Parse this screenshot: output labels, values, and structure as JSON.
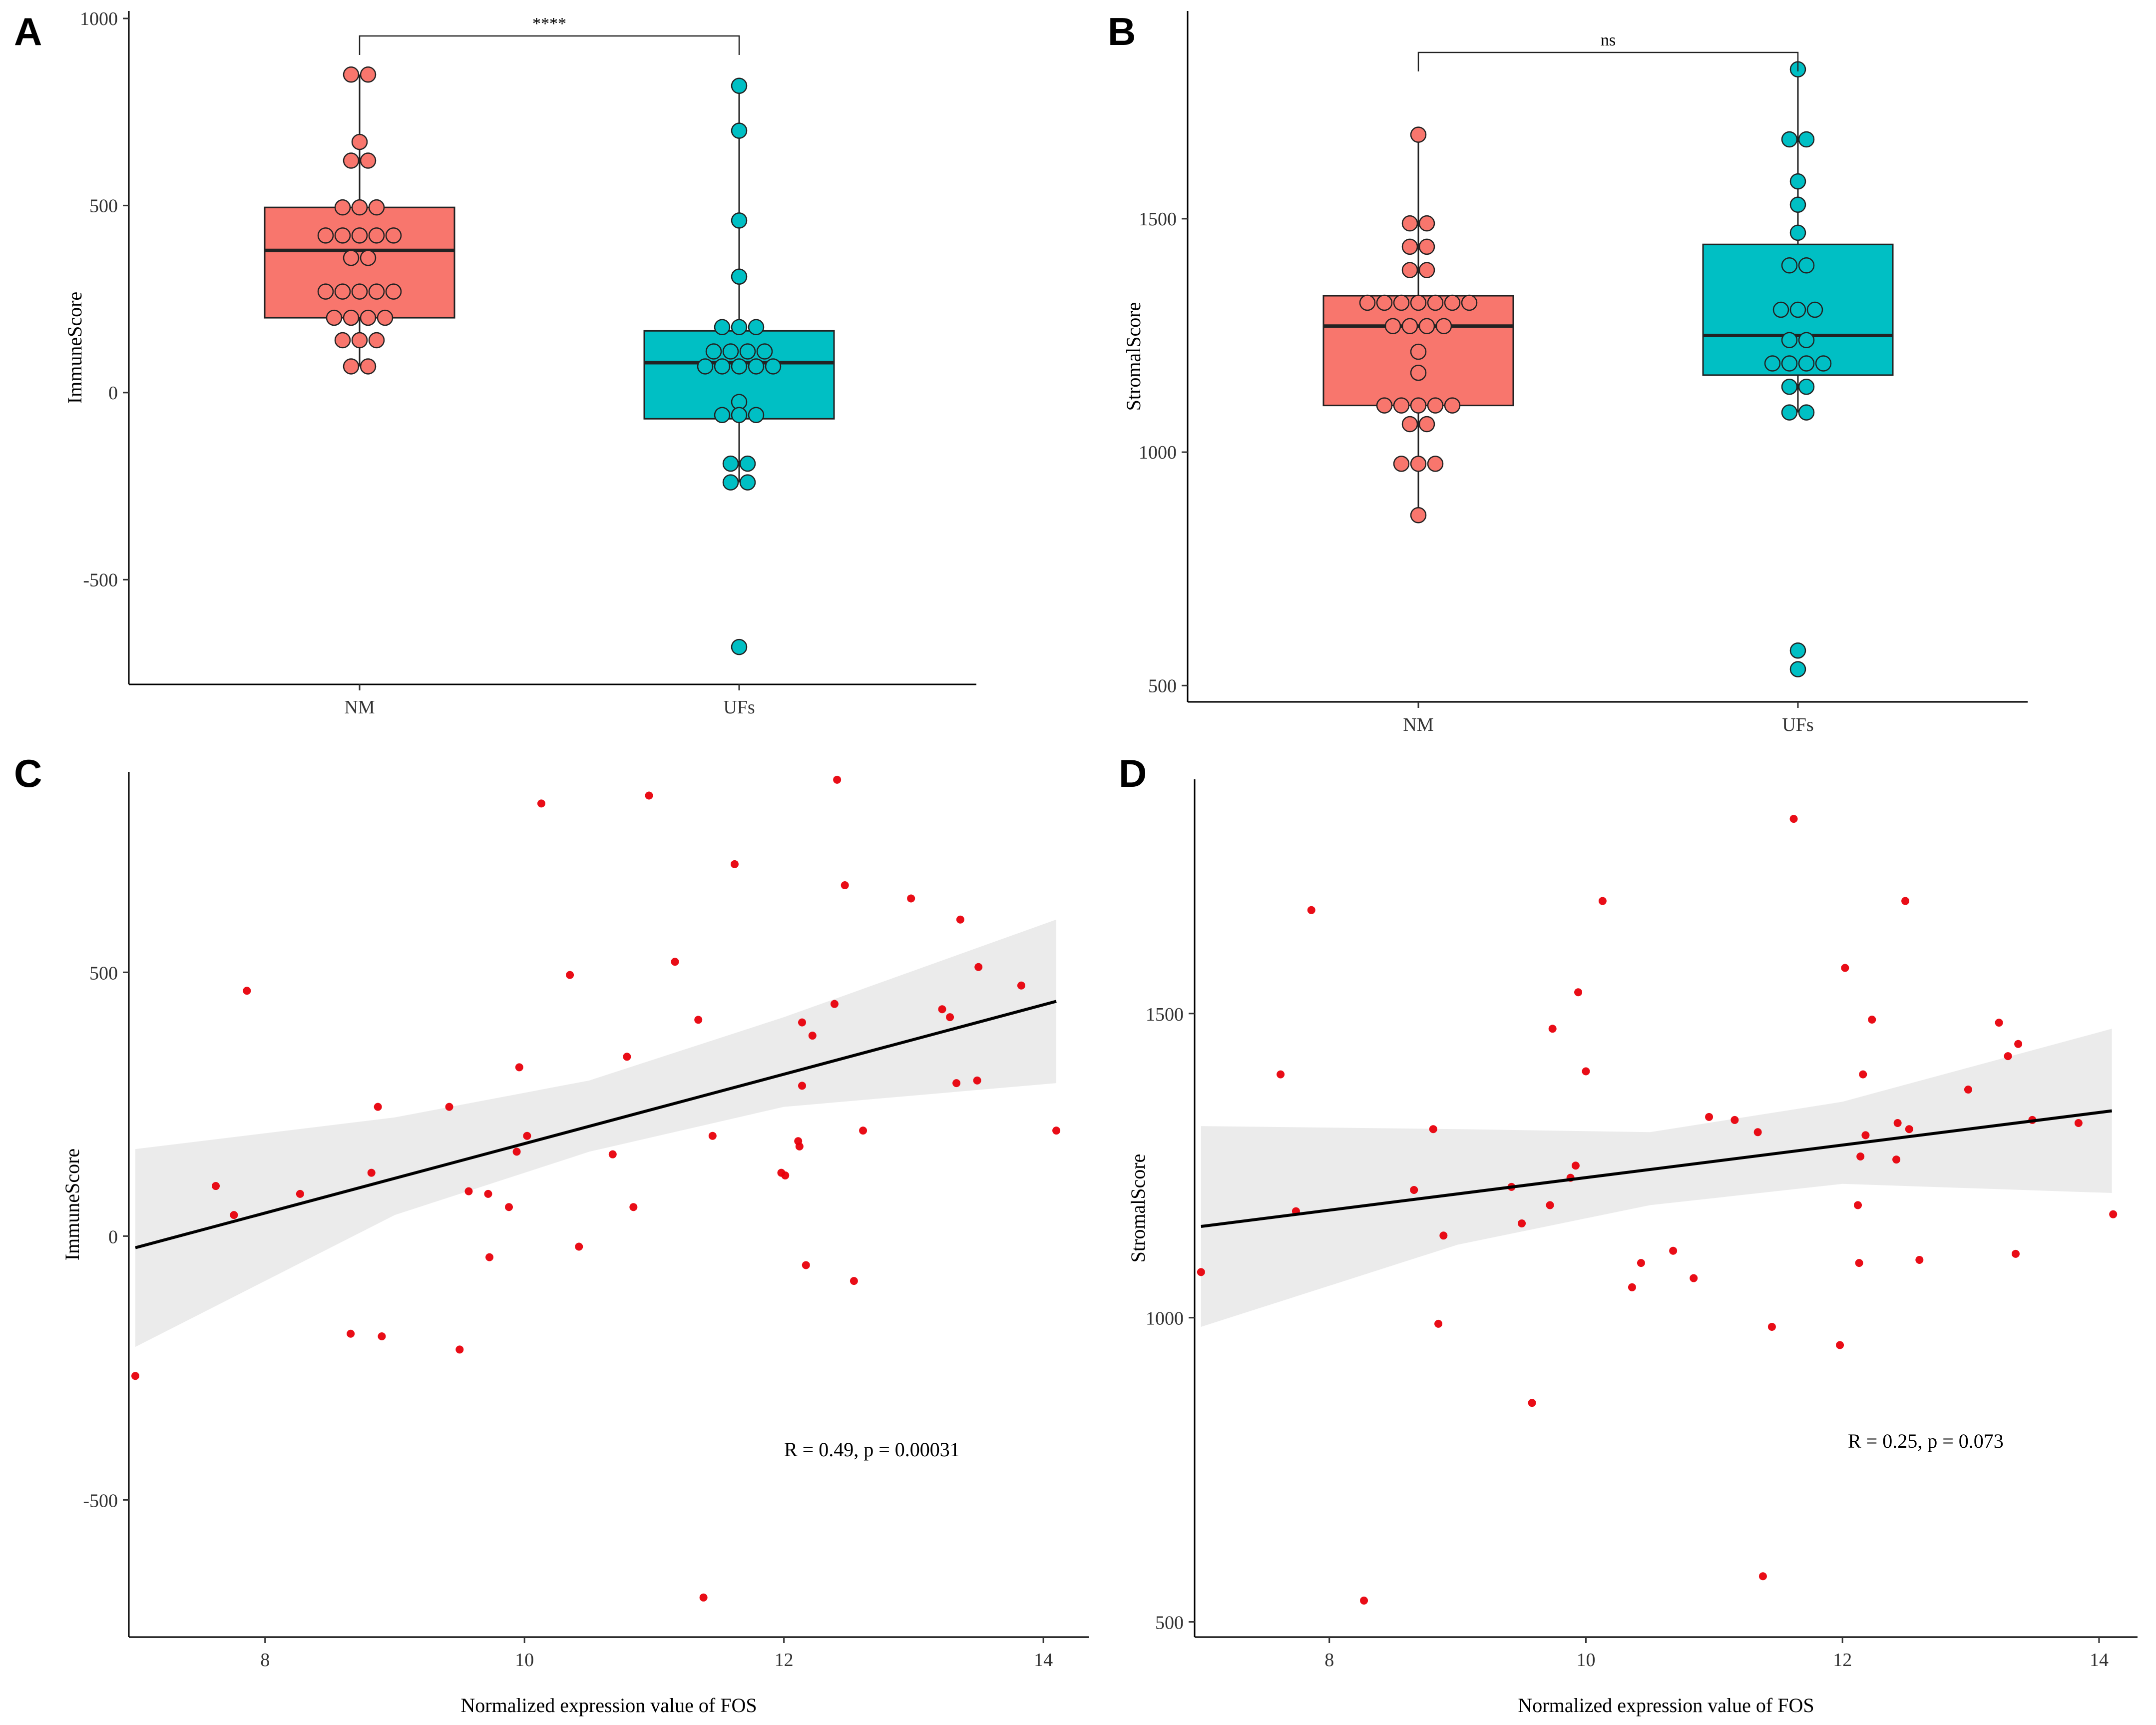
{
  "panels": {
    "A": "A",
    "B": "B",
    "C": "C",
    "D": "D"
  },
  "colors": {
    "nm": "#F8766D",
    "ufs": "#00BFC4",
    "point": "#E8000B",
    "band": "#EBEBEB",
    "line": "#000000"
  },
  "chart_data": [
    {
      "panel": "A",
      "type": "box",
      "ylabel": "ImmuneScore",
      "xlabel": "",
      "categories": [
        "NM",
        "UFs"
      ],
      "ylim": [
        -780,
        1020
      ],
      "yticks": [
        1000,
        500,
        0,
        -500
      ],
      "ytick_labels": [
        "1000",
        "500",
        "0",
        "-500"
      ],
      "significance": "****",
      "boxes": [
        {
          "name": "NM",
          "q1": 200,
          "median": 380,
          "q3": 495,
          "whisker_low": 70,
          "whisker_high": 850,
          "points": [
            850,
            850,
            670,
            620,
            620,
            495,
            495,
            495,
            420,
            420,
            420,
            420,
            420,
            360,
            360,
            270,
            270,
            270,
            270,
            270,
            200,
            200,
            200,
            200,
            140,
            140,
            140,
            70,
            70
          ]
        },
        {
          "name": "UFs",
          "q1": -70,
          "median": 80,
          "q3": 165,
          "whisker_low": -240,
          "whisker_high": 820,
          "points": [
            820,
            700,
            460,
            310,
            175,
            175,
            175,
            110,
            110,
            110,
            110,
            70,
            70,
            70,
            70,
            70,
            -25,
            -60,
            -60,
            -60,
            -190,
            -190,
            -240,
            -240,
            -680
          ]
        }
      ]
    },
    {
      "panel": "B",
      "type": "box",
      "ylabel": "StromalScore",
      "xlabel": "",
      "categories": [
        "NM",
        "UFs"
      ],
      "ylim": [
        465,
        1945
      ],
      "yticks": [
        1500,
        1000,
        500
      ],
      "ytick_labels": [
        "1500",
        "1000",
        "500"
      ],
      "significance": "ns",
      "boxes": [
        {
          "name": "NM",
          "q1": 1100,
          "median": 1270,
          "q3": 1335,
          "whisker_low": 865,
          "whisker_high": 1680,
          "points": [
            1680,
            1490,
            1490,
            1440,
            1440,
            1390,
            1390,
            1320,
            1320,
            1320,
            1320,
            1320,
            1320,
            1320,
            1270,
            1270,
            1270,
            1270,
            1215,
            1170,
            1100,
            1100,
            1100,
            1100,
            1100,
            1060,
            1060,
            975,
            975,
            975,
            865
          ]
        },
        {
          "name": "UFs",
          "q1": 1165,
          "median": 1250,
          "q3": 1445,
          "whisker_low": 1085,
          "whisker_high": 1820,
          "points": [
            1820,
            1670,
            1670,
            1580,
            1530,
            1470,
            1400,
            1400,
            1305,
            1305,
            1305,
            1240,
            1240,
            1190,
            1190,
            1190,
            1190,
            1140,
            1140,
            1085,
            1085,
            575,
            535
          ]
        }
      ]
    },
    {
      "panel": "C",
      "type": "scatter",
      "xlabel": "Normalized expression value of  FOS",
      "ylabel": "ImmuneScore",
      "xlim": [
        6.95,
        14.35
      ],
      "ylim": [
        -760,
        880
      ],
      "xticks": [
        8,
        10,
        12,
        14
      ],
      "xtick_labels": [
        "8",
        "10",
        "12",
        "14"
      ],
      "yticks": [
        500,
        0,
        -500
      ],
      "ytick_labels": [
        "500",
        "0",
        "-500"
      ],
      "annotation": "R = 0.49, p = 0.00031",
      "fit": {
        "x": [
          7.0,
          14.1
        ],
        "y": [
          -22,
          445
        ]
      },
      "band": {
        "x": [
          7.0,
          9.0,
          10.5,
          12.0,
          14.1
        ],
        "lower": [
          -210,
          40,
          160,
          245,
          290
        ],
        "upper": [
          165,
          225,
          295,
          415,
          600
        ]
      },
      "points": [
        [
          7.0,
          -265
        ],
        [
          7.62,
          95
        ],
        [
          7.76,
          40
        ],
        [
          7.86,
          465
        ],
        [
          8.27,
          80
        ],
        [
          8.66,
          -185
        ],
        [
          8.82,
          120
        ],
        [
          8.87,
          245
        ],
        [
          8.9,
          -190
        ],
        [
          9.42,
          245
        ],
        [
          9.5,
          -215
        ],
        [
          9.57,
          85
        ],
        [
          9.72,
          80
        ],
        [
          9.73,
          -40
        ],
        [
          9.88,
          55
        ],
        [
          9.94,
          160
        ],
        [
          9.96,
          320
        ],
        [
          10.02,
          190
        ],
        [
          10.13,
          820
        ],
        [
          10.35,
          495
        ],
        [
          10.42,
          -20
        ],
        [
          10.68,
          155
        ],
        [
          10.79,
          340
        ],
        [
          10.84,
          55
        ],
        [
          10.96,
          835
        ],
        [
          11.16,
          520
        ],
        [
          11.34,
          410
        ],
        [
          11.38,
          -685
        ],
        [
          11.45,
          190
        ],
        [
          11.62,
          705
        ],
        [
          11.98,
          120
        ],
        [
          12.01,
          115
        ],
        [
          12.11,
          180
        ],
        [
          12.12,
          170
        ],
        [
          12.14,
          285
        ],
        [
          12.14,
          405
        ],
        [
          12.17,
          -55
        ],
        [
          12.22,
          380
        ],
        [
          12.39,
          440
        ],
        [
          12.41,
          865
        ],
        [
          12.47,
          665
        ],
        [
          12.54,
          -85
        ],
        [
          12.61,
          200
        ],
        [
          12.98,
          640
        ],
        [
          13.22,
          430
        ],
        [
          13.28,
          415
        ],
        [
          13.33,
          290
        ],
        [
          13.36,
          600
        ],
        [
          13.49,
          295
        ],
        [
          13.5,
          510
        ],
        [
          13.83,
          475
        ],
        [
          14.1,
          200
        ]
      ]
    },
    {
      "panel": "D",
      "type": "scatter",
      "xlabel": "Normalized expression value of  FOS",
      "ylabel": "StromalScore",
      "xlim": [
        6.95,
        14.3
      ],
      "ylim": [
        475,
        1885
      ],
      "xticks": [
        8,
        10,
        12,
        14
      ],
      "xtick_labels": [
        "8",
        "10",
        "12",
        "14"
      ],
      "yticks": [
        1500,
        1000,
        500
      ],
      "ytick_labels": [
        "1500",
        "1000",
        "500"
      ],
      "annotation": "R = 0.25, p = 0.073",
      "fit": {
        "x": [
          7.0,
          14.1
        ],
        "y": [
          1150,
          1340
        ]
      },
      "band": {
        "x": [
          7.0,
          9.0,
          10.5,
          12.0,
          14.1
        ],
        "lower": [
          985,
          1120,
          1185,
          1220,
          1205
        ],
        "upper": [
          1315,
          1310,
          1305,
          1355,
          1475
        ]
      },
      "points": [
        [
          7.0,
          1075
        ],
        [
          7.62,
          1400
        ],
        [
          7.74,
          1175
        ],
        [
          7.86,
          1670
        ],
        [
          8.27,
          535
        ],
        [
          8.66,
          1210
        ],
        [
          8.81,
          1310
        ],
        [
          8.85,
          990
        ],
        [
          8.89,
          1135
        ],
        [
          9.42,
          1215
        ],
        [
          9.5,
          1155
        ],
        [
          9.58,
          860
        ],
        [
          9.72,
          1185
        ],
        [
          9.74,
          1475
        ],
        [
          9.88,
          1230
        ],
        [
          9.92,
          1250
        ],
        [
          9.94,
          1535
        ],
        [
          10.0,
          1405
        ],
        [
          10.13,
          1685
        ],
        [
          10.36,
          1050
        ],
        [
          10.43,
          1090
        ],
        [
          10.68,
          1110
        ],
        [
          10.84,
          1065
        ],
        [
          10.96,
          1330
        ],
        [
          11.16,
          1325
        ],
        [
          11.34,
          1305
        ],
        [
          11.38,
          575
        ],
        [
          11.45,
          985
        ],
        [
          11.62,
          1820
        ],
        [
          11.98,
          955
        ],
        [
          12.02,
          1575
        ],
        [
          12.12,
          1185
        ],
        [
          12.13,
          1090
        ],
        [
          12.14,
          1265
        ],
        [
          12.16,
          1400
        ],
        [
          12.18,
          1300
        ],
        [
          12.23,
          1490
        ],
        [
          12.42,
          1260
        ],
        [
          12.43,
          1320
        ],
        [
          12.49,
          1685
        ],
        [
          12.52,
          1310
        ],
        [
          12.6,
          1095
        ],
        [
          12.98,
          1375
        ],
        [
          13.22,
          1485
        ],
        [
          13.29,
          1430
        ],
        [
          13.35,
          1105
        ],
        [
          13.37,
          1450
        ],
        [
          13.48,
          1325
        ],
        [
          13.84,
          1320
        ],
        [
          14.11,
          1170
        ]
      ]
    }
  ]
}
